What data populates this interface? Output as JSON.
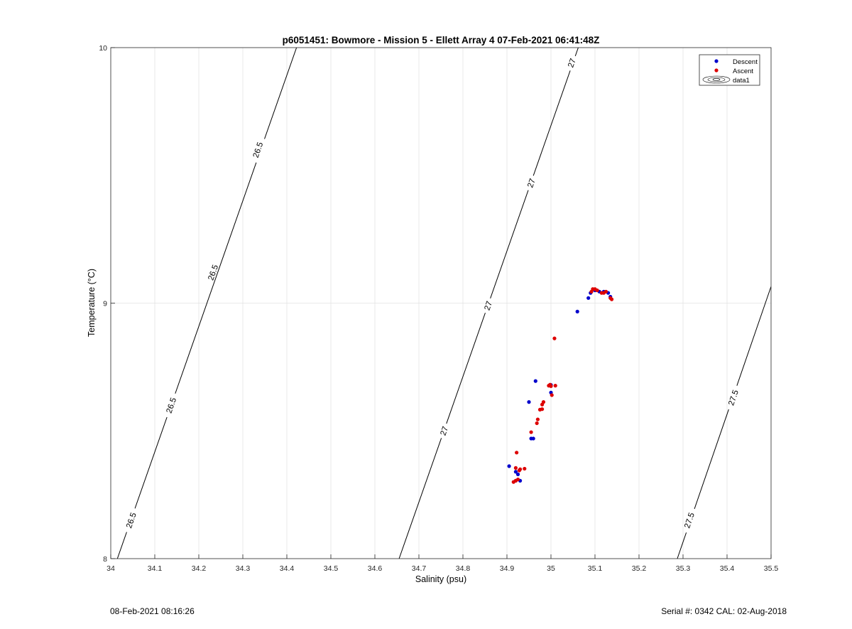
{
  "footer": {
    "timestamp": "08-Feb-2021 08:16:26",
    "serial_cal": "Serial #: 0342  CAL: 02-Aug-2018"
  },
  "chart_data": {
    "type": "scatter",
    "title": "p6051451: Bowmore - Mission 5 - Ellett Array 4 07-Feb-2021 06:41:48Z",
    "xlabel": "Salinity (psu)",
    "ylabel": "Temperature (°C)",
    "xlim": [
      34,
      35.5
    ],
    "ylim": [
      8,
      10
    ],
    "xticks": [
      34,
      34.1,
      34.2,
      34.3,
      34.4,
      34.5,
      34.6,
      34.7,
      34.8,
      34.9,
      35,
      35.1,
      35.2,
      35.3,
      35.4,
      35.5
    ],
    "xtick_labels": [
      "34",
      "34.1",
      "34.2",
      "34.3",
      "34.4",
      "34.5",
      "34.6",
      "34.7",
      "34.8",
      "34.9",
      "35",
      "35.1",
      "35.2",
      "35.3",
      "35.4",
      "35.5"
    ],
    "yticks": [
      8,
      9,
      10
    ],
    "ytick_labels": [
      "8",
      "9",
      "10"
    ],
    "grid": true,
    "legend": {
      "position": "top-right",
      "entries": [
        "Descent",
        "Ascent",
        "data1"
      ]
    },
    "contours": [
      {
        "level": "26.5",
        "line": [
          [
            34.015,
            8.0
          ],
          [
            34.422,
            10.0
          ]
        ],
        "labels": [
          {
            "s": 34.046,
            "t": 8.15
          },
          {
            "s": 34.137,
            "t": 8.6
          },
          {
            "s": 34.232,
            "t": 9.12
          },
          {
            "s": 34.334,
            "t": 9.6
          }
        ]
      },
      {
        "level": "27",
        "line": [
          [
            34.655,
            8.0
          ],
          [
            35.062,
            10.0
          ]
        ],
        "labels": [
          {
            "s": 34.757,
            "t": 8.5
          },
          {
            "s": 34.857,
            "t": 8.99
          },
          {
            "s": 34.955,
            "t": 9.47
          },
          {
            "s": 35.047,
            "t": 9.94
          }
        ]
      },
      {
        "level": "27.5",
        "line": [
          [
            35.287,
            8.0
          ],
          [
            35.5,
            9.065
          ]
        ],
        "labels": [
          {
            "s": 35.314,
            "t": 8.15
          },
          {
            "s": 35.414,
            "t": 8.63
          }
        ]
      }
    ],
    "series": [
      {
        "name": "Descent",
        "color": "#0000cc",
        "points": [
          [
            34.905,
            8.362
          ],
          [
            34.92,
            8.34
          ],
          [
            34.925,
            8.33
          ],
          [
            34.93,
            8.305
          ],
          [
            34.92,
            8.305
          ],
          [
            34.955,
            8.47
          ],
          [
            34.96,
            8.47
          ],
          [
            34.95,
            8.613
          ],
          [
            34.965,
            8.695
          ],
          [
            35.0,
            8.65
          ],
          [
            35.0,
            8.68
          ],
          [
            35.06,
            8.967
          ],
          [
            35.085,
            9.02
          ],
          [
            35.09,
            9.04
          ],
          [
            35.1,
            9.05
          ],
          [
            35.11,
            9.045
          ],
          [
            35.12,
            9.045
          ],
          [
            35.13,
            9.04
          ],
          [
            35.135,
            9.025
          ]
        ]
      },
      {
        "name": "Ascent",
        "color": "#dd0000",
        "points": [
          [
            34.915,
            8.3
          ],
          [
            34.92,
            8.305
          ],
          [
            34.925,
            8.31
          ],
          [
            34.92,
            8.355
          ],
          [
            34.922,
            8.415
          ],
          [
            34.928,
            8.345
          ],
          [
            34.93,
            8.35
          ],
          [
            34.94,
            8.352
          ],
          [
            34.955,
            8.495
          ],
          [
            34.968,
            8.53
          ],
          [
            34.97,
            8.545
          ],
          [
            34.975,
            8.583
          ],
          [
            34.98,
            8.585
          ],
          [
            34.98,
            8.603
          ],
          [
            34.983,
            8.613
          ],
          [
            34.995,
            8.677
          ],
          [
            34.998,
            8.681
          ],
          [
            35.0,
            8.675
          ],
          [
            35.002,
            8.64
          ],
          [
            35.01,
            8.677
          ],
          [
            35.008,
            8.862
          ],
          [
            35.092,
            9.045
          ],
          [
            35.095,
            9.055
          ],
          [
            35.1,
            9.055
          ],
          [
            35.105,
            9.05
          ],
          [
            35.115,
            9.04
          ],
          [
            35.12,
            9.04
          ],
          [
            35.125,
            9.045
          ],
          [
            35.135,
            9.02
          ],
          [
            35.138,
            9.015
          ]
        ]
      }
    ]
  }
}
